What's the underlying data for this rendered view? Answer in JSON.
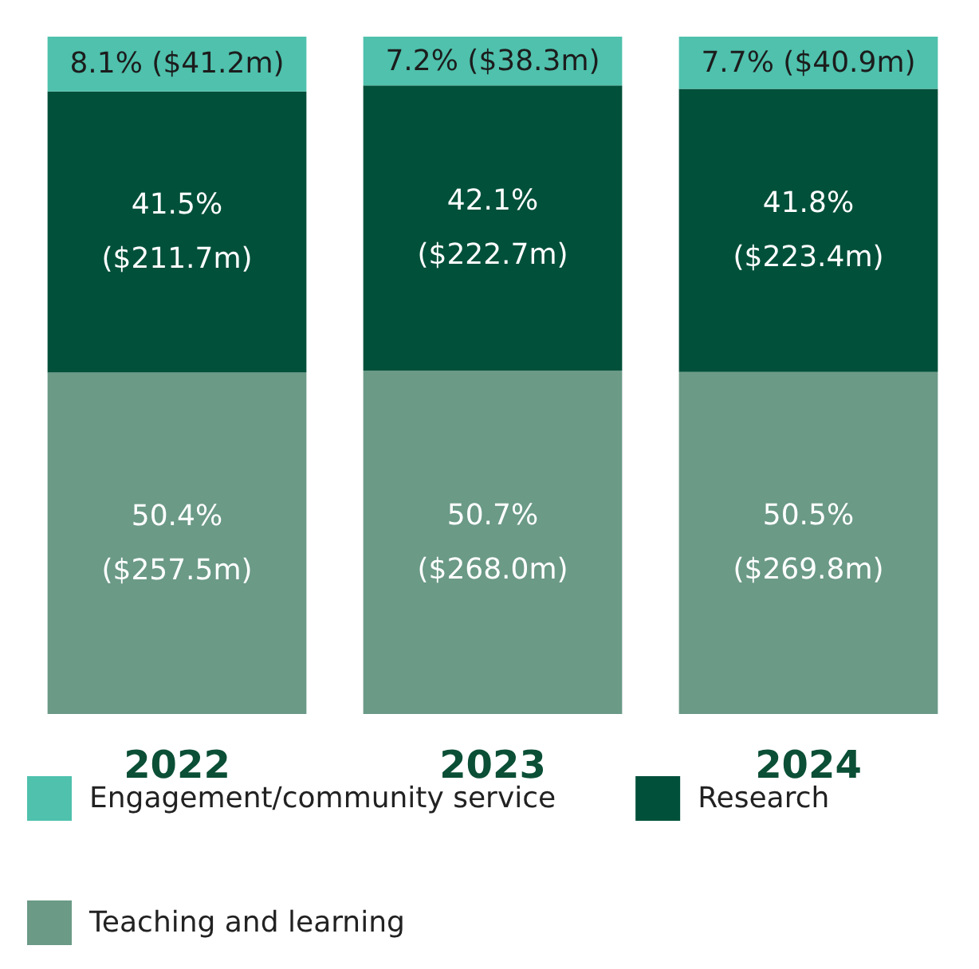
{
  "chart_data": {
    "type": "bar",
    "stacked": true,
    "categories": [
      "2022",
      "2023",
      "2024"
    ],
    "series": [
      {
        "name": "Teaching and learning",
        "color": "#6b9a87",
        "values": [
          50.4,
          50.7,
          50.5
        ],
        "value_labels": [
          "50.4%\n($257.5m)",
          "50.7%\n($268.0m)",
          "50.5%\n($269.8m)"
        ]
      },
      {
        "name": "Research",
        "color": "#00503a",
        "values": [
          41.5,
          42.1,
          41.8
        ],
        "value_labels": [
          "41.5%\n($211.7m)",
          "42.1%\n($222.7m)",
          "41.8%\n($223.4m)"
        ]
      },
      {
        "name": "Engagement/community service",
        "color": "#4fc1ad",
        "values": [
          8.1,
          7.2,
          7.7
        ],
        "value_labels": [
          "8.1% ($41.2m)",
          "7.2% ($38.3m)",
          "7.7% ($40.9m)"
        ]
      }
    ],
    "legend": "bottom"
  }
}
